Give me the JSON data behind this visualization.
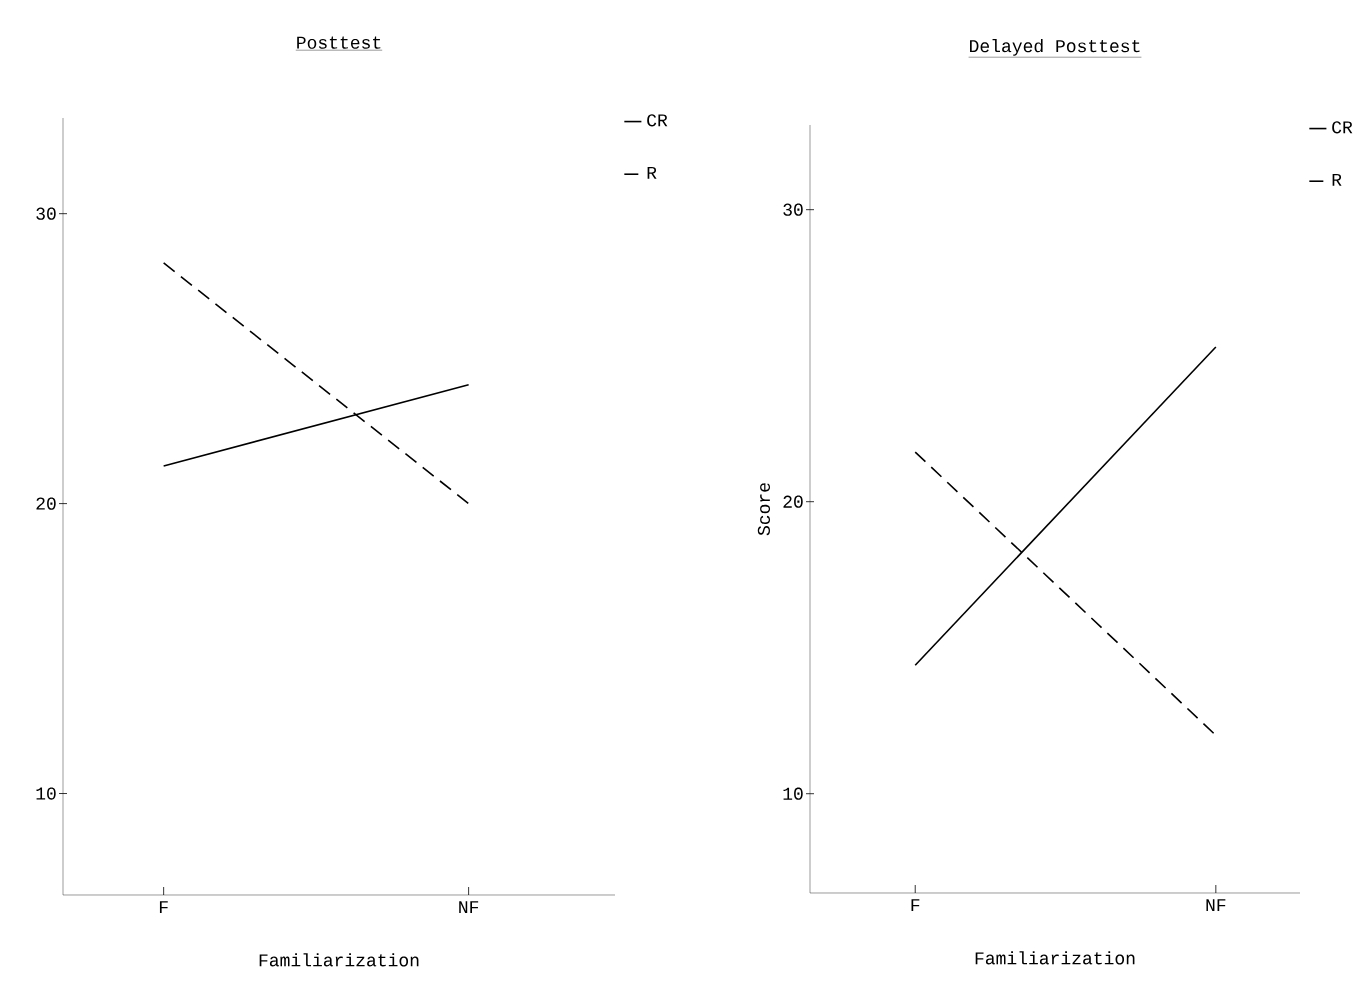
{
  "chart_data": [
    {
      "type": "line",
      "title": "Posttest",
      "xlabel": "Familiarization",
      "categories": [
        "F",
        "NF"
      ],
      "ylim": [
        6.5,
        33.3
      ],
      "yticks": [
        10,
        20,
        30
      ],
      "legend": "top right",
      "grid": false,
      "series": [
        {
          "name": "CR",
          "color": "#000000",
          "line_style": "solid",
          "values": [
            21.3,
            24.1
          ]
        },
        {
          "name": "R",
          "color": "#000000",
          "line_style": "dashed",
          "values": [
            28.3,
            20.0
          ]
        }
      ]
    },
    {
      "type": "line",
      "title": "Delayed Posttest",
      "xlabel": "Familiarization",
      "ylabel": "Score",
      "categories": [
        "F",
        "NF"
      ],
      "ylim": [
        6.6,
        32.9
      ],
      "yticks": [
        10,
        20,
        30
      ],
      "legend": "top right",
      "grid": false,
      "series": [
        {
          "name": "CR",
          "color": "#000000",
          "line_style": "solid",
          "values": [
            14.4,
            25.3
          ]
        },
        {
          "name": "R",
          "color": "#000000",
          "line_style": "dashed",
          "values": [
            21.7,
            12.0
          ]
        }
      ]
    }
  ]
}
